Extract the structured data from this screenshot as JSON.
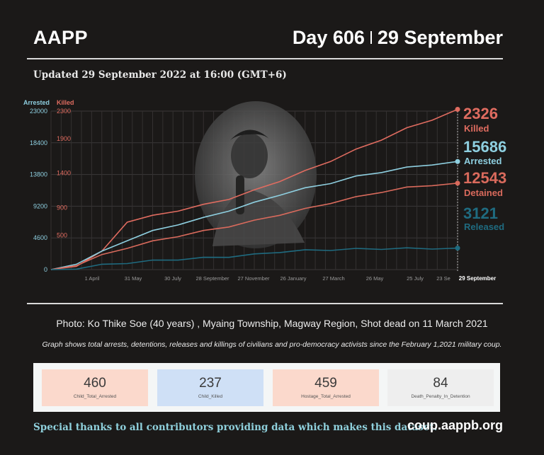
{
  "header": {
    "brand": "AAPP",
    "day_label": "Day 606",
    "date_label": "29 September",
    "updated": "Updated 29 September 2022 at 16:00 (GMT+6)"
  },
  "photo_credit": "Photo: Ko Thike Soe (40 years) , Myaing Township, Magway Region, Shot dead on 11 March 2021",
  "footnote": "Graph shows total arrests, detentions, releases and killings of civilians and pro-democracy activists since the February 1,2021 military coup.",
  "stats": [
    {
      "value": "460",
      "label": "Child_Total_Arrested",
      "color": "#fbd9cc"
    },
    {
      "value": "237",
      "label": "Child_Killed",
      "color": "#cfe0f6"
    },
    {
      "value": "459",
      "label": "Hostage_Total_Arrested",
      "color": "#fbd9cc"
    },
    {
      "value": "84",
      "label": "Death_Penalty_In_Detention",
      "color": "#eeeeee"
    }
  ],
  "footer": {
    "thanks": "Special thanks to all contributors providing data which makes this dataset.",
    "site": "coup.aappb.org"
  },
  "colors": {
    "killed": "#e06c60",
    "arrested": "#8ecfe0",
    "detained": "#d96a5c",
    "released": "#1f6b80",
    "background": "#1b1918"
  },
  "chart_data": {
    "type": "line",
    "x_ticks": [
      "1 April",
      "31 May",
      "30 July",
      "28 September",
      "27 November",
      "26 January",
      "27 March",
      "26 May",
      "25 July",
      "23 Se",
      "29 September"
    ],
    "left_axis": {
      "label": "Arrested",
      "ticks": [
        "23000",
        "18400",
        "13800",
        "9200",
        "4600",
        "0"
      ],
      "range": [
        0,
        23000
      ]
    },
    "right_axis": {
      "label": "Killed",
      "ticks": [
        "2300",
        "1900",
        "1400",
        "900",
        "500"
      ],
      "range": [
        0,
        2300
      ]
    },
    "series": [
      {
        "name": "Killed",
        "final": "2326",
        "color": "#e06c60",
        "axis": "right",
        "values": [
          0,
          60,
          260,
          700,
          780,
          860,
          940,
          1030,
          1150,
          1290,
          1430,
          1580,
          1740,
          1890,
          2050,
          2180,
          2326
        ]
      },
      {
        "name": "Arrested",
        "final": "15686",
        "color": "#8ecfe0",
        "axis": "left",
        "values": [
          0,
          900,
          2600,
          4300,
          5600,
          6600,
          7500,
          8600,
          9700,
          10900,
          11800,
          12600,
          13500,
          14200,
          14800,
          15300,
          15686
        ]
      },
      {
        "name": "Detained",
        "final": "12543",
        "color": "#d96a5c",
        "axis": "left",
        "values": [
          0,
          700,
          2100,
          3200,
          4100,
          4900,
          5600,
          6300,
          7100,
          8000,
          8800,
          9700,
          10500,
          11300,
          11900,
          12300,
          12543
        ]
      },
      {
        "name": "Released",
        "final": "3121",
        "color": "#1f6b80",
        "axis": "left",
        "values": [
          0,
          200,
          700,
          1000,
          1300,
          1500,
          1700,
          1900,
          2200,
          2600,
          2800,
          2900,
          3000,
          3050,
          3080,
          3100,
          3121
        ]
      }
    ],
    "end_label": "29 September",
    "grid": true
  }
}
